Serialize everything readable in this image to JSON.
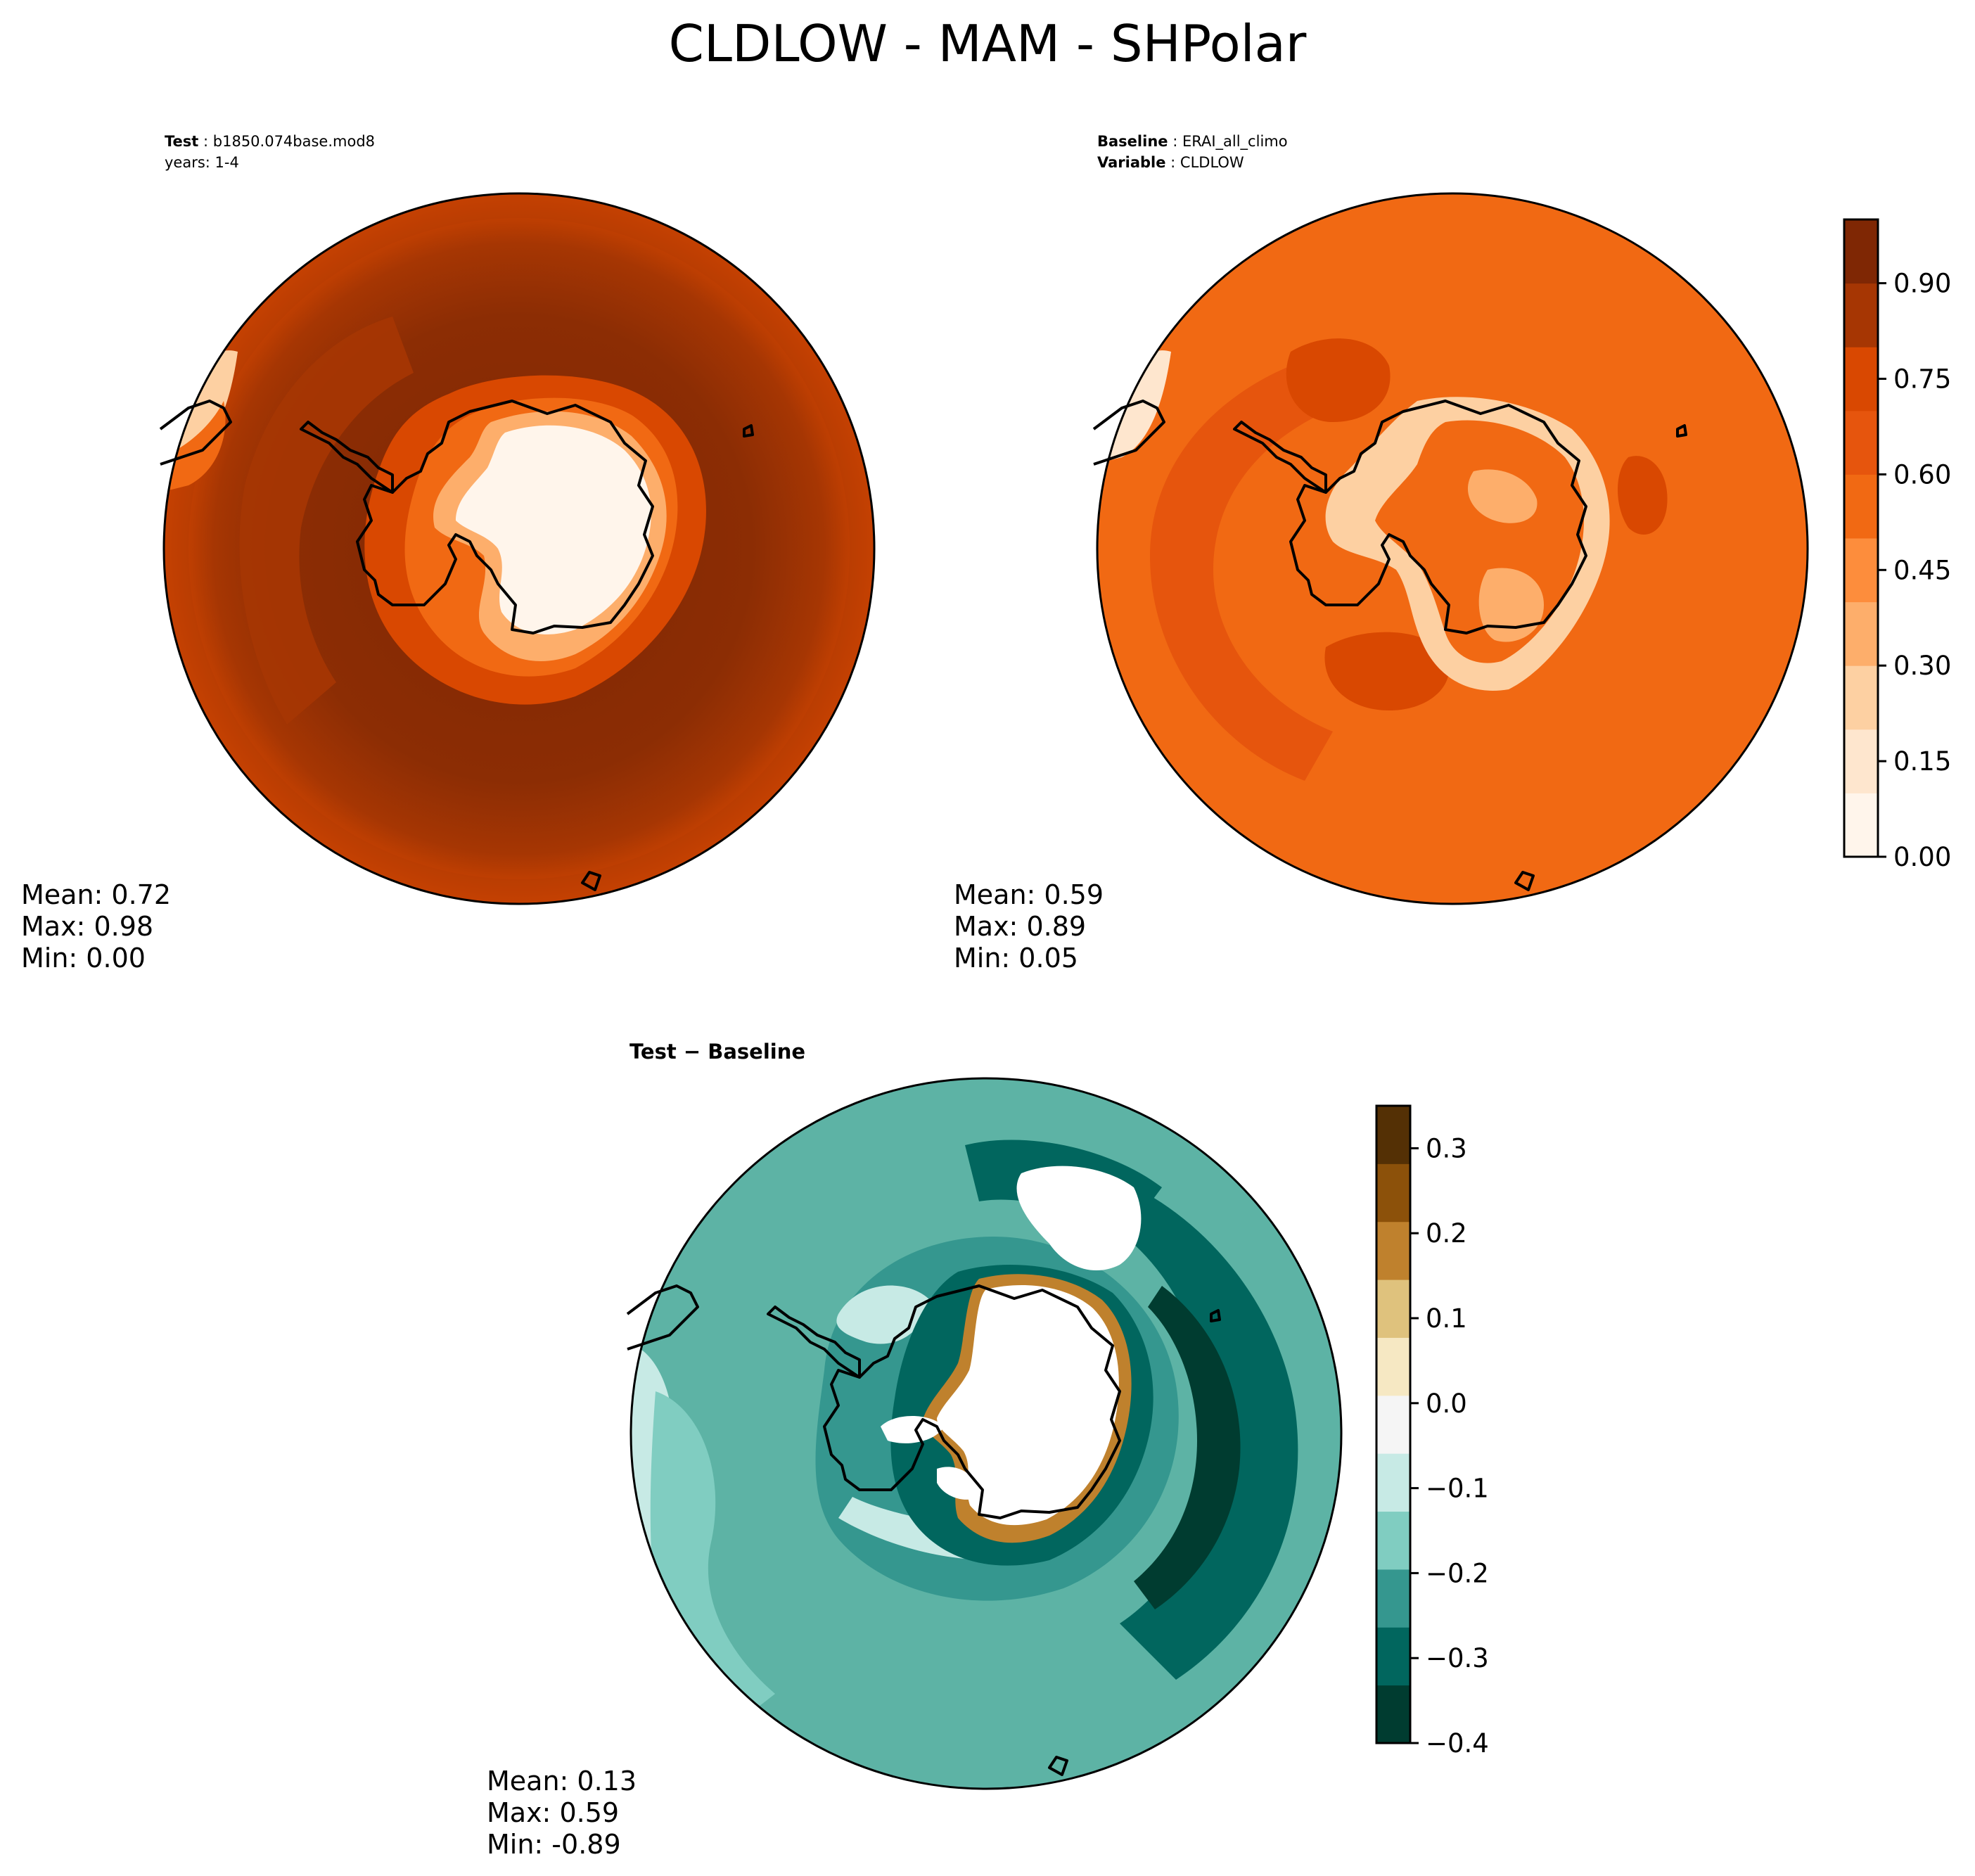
{
  "figure": {
    "title": "CLDLOW - MAM - SHPolar"
  },
  "test_panel": {
    "label_key": "Test",
    "label_value": "b1850.074base.mod8",
    "years": "years: 1-4",
    "mean": "Mean:  0.72",
    "max": "Max:  0.98",
    "min": "Min:  0.00"
  },
  "baseline_panel": {
    "label1_key": "Baseline",
    "label1_value": "ERAI_all_climo",
    "label2_key": "Variable",
    "label2_value": "CLDLOW",
    "mean": "Mean:  0.59",
    "max": "Max:  0.89",
    "min": "Min:  0.05"
  },
  "diff_panel": {
    "title": "Test − Baseline",
    "mean": "Mean:  0.13",
    "max": "Max:  0.59",
    "min": "Min: -0.89"
  },
  "colorbar_main": {
    "ticks": [
      "0.00",
      "0.15",
      "0.30",
      "0.45",
      "0.60",
      "0.75",
      "0.90"
    ],
    "tick_values": [
      0.0,
      0.15,
      0.3,
      0.45,
      0.6,
      0.75,
      0.9
    ],
    "range": [
      0.0,
      1.0
    ],
    "colormap": "Oranges",
    "colors": [
      "#fff5eb",
      "#fee6ce",
      "#fdd0a2",
      "#fdae6b",
      "#fd8d3c",
      "#f16913",
      "#e6550d",
      "#d94801",
      "#a63603",
      "#7f2704"
    ]
  },
  "colorbar_diff": {
    "ticks": [
      "0.3",
      "0.2",
      "0.1",
      "0.0",
      "−0.1",
      "−0.2",
      "−0.3",
      "−0.4"
    ],
    "tick_values": [
      0.3,
      0.2,
      0.1,
      0.0,
      -0.1,
      -0.2,
      -0.3,
      -0.4
    ],
    "range": [
      -0.4,
      0.35
    ],
    "colormap": "BrBG",
    "colors": [
      "#003c30",
      "#01665e",
      "#35978f",
      "#80cdc1",
      "#c7eae5",
      "#f5f5f5",
      "#f6e8c3",
      "#dfc27d",
      "#bf812d",
      "#8c510a",
      "#543005"
    ]
  }
}
